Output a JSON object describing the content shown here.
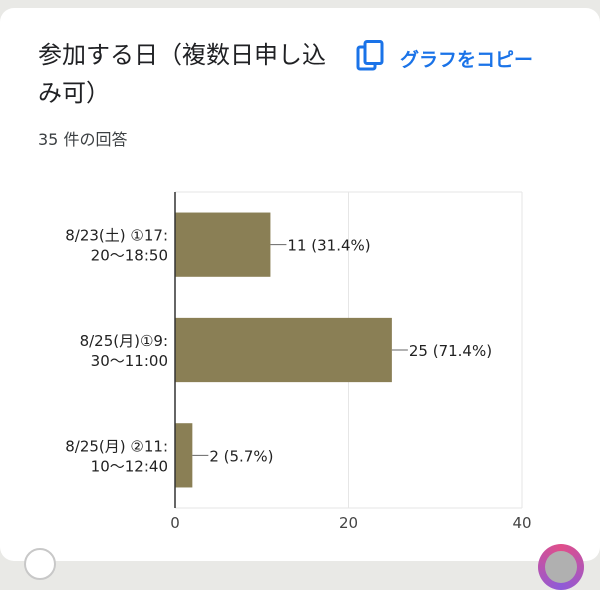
{
  "card": {
    "title": "参加する日（複数日申し込み可）",
    "copy_label": "グラフをコピー",
    "response_count": "35 件の回答"
  },
  "colors": {
    "bar": "#8a7f55",
    "accent": "#1a73e8",
    "grid": "#e6e6e6",
    "axis": "#333333"
  },
  "icons": {
    "copy": "copy-icon"
  },
  "chart_data": {
    "type": "bar",
    "orientation": "horizontal",
    "categories": [
      [
        "8/23(土) ①17:",
        "20〜18:50"
      ],
      [
        "8/25(月)①9:",
        "30〜11:00"
      ],
      [
        "8/25(月) ②11:",
        "10〜12:40"
      ]
    ],
    "values": [
      11,
      25,
      2
    ],
    "data_labels": [
      "11 (31.4%)",
      "25 (71.4%)",
      "2 (5.7%)"
    ],
    "xlim": [
      0,
      40
    ],
    "xticks": [
      "0",
      "20",
      "40"
    ],
    "grid": true
  }
}
